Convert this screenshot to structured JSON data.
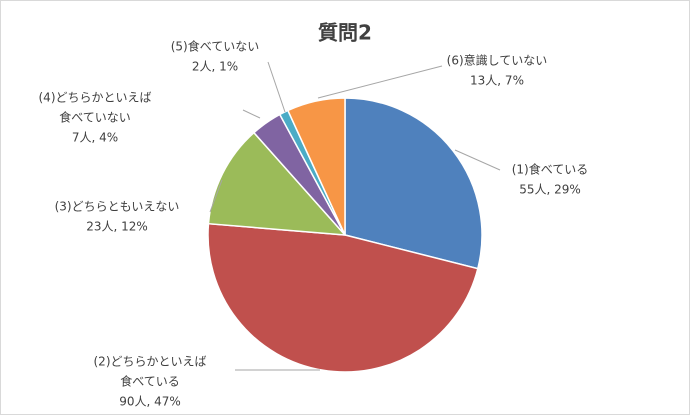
{
  "chart_data": {
    "type": "pie",
    "title": "質問2",
    "categories": [
      [
        "(1)食べている"
      ],
      [
        "(2)どちらかといえば",
        "食べている"
      ],
      [
        "(3)どちらともいえない"
      ],
      [
        "(4)どちらかといえば",
        "食べていない"
      ],
      [
        "(5)食べていない"
      ],
      [
        "(6)意識していない"
      ]
    ],
    "values": [
      55,
      90,
      23,
      7,
      2,
      13
    ],
    "value_labels": [
      "55人, 29%",
      "90人, 47%",
      "23人, 12%",
      "7人, 4%",
      "2人, 1%",
      "13人, 7%"
    ],
    "colors": [
      "#4f81bd",
      "#c0504d",
      "#9bbb59",
      "#8064a2",
      "#4bacc6",
      "#f79646"
    ]
  }
}
